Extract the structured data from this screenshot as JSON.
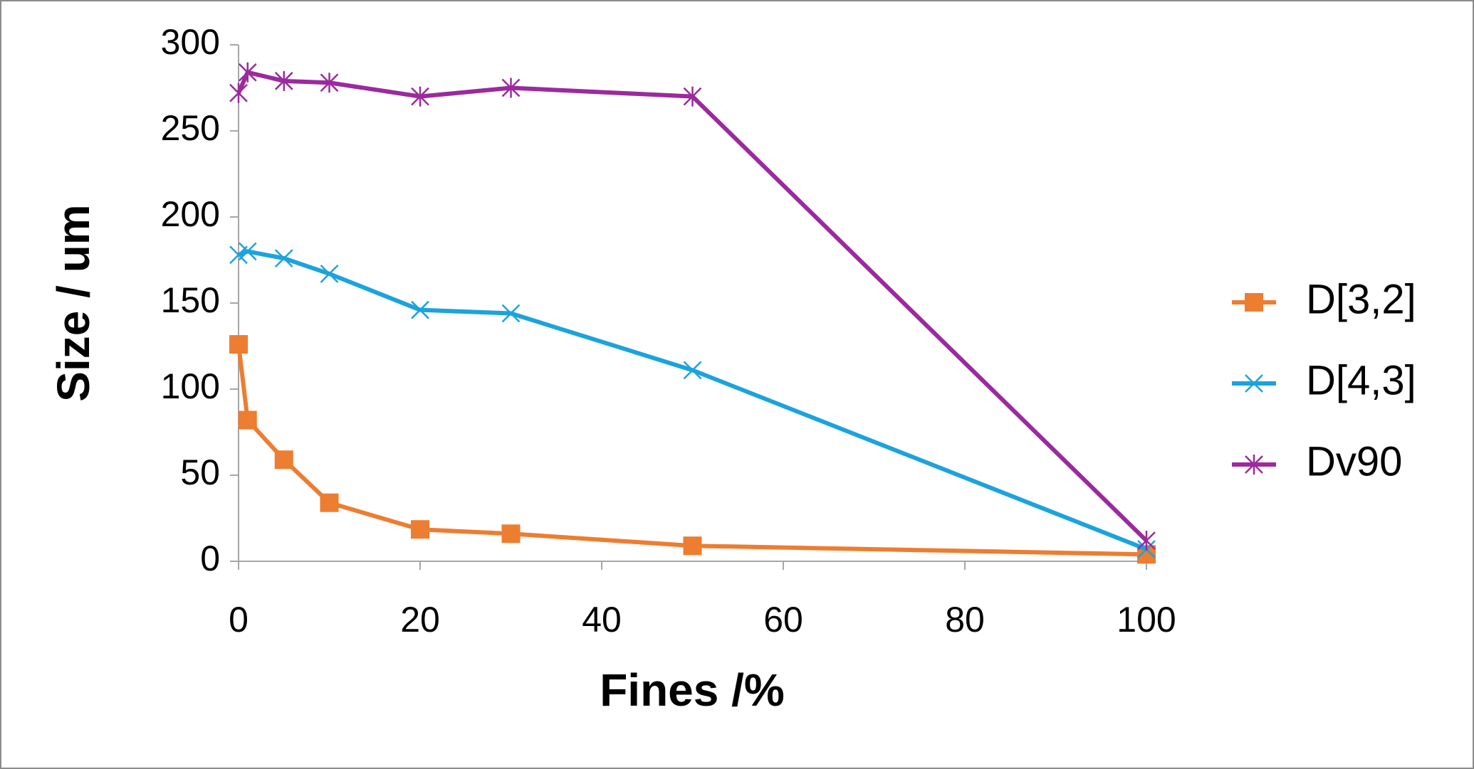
{
  "chart_data": {
    "type": "line",
    "x_label": "Fines /%",
    "y_label": "Size / um",
    "x": [
      0,
      1,
      5,
      10,
      20,
      30,
      50,
      100
    ],
    "series": [
      {
        "name": "D[3,2]",
        "color": "#ED7D31",
        "marker": "square",
        "values": [
          126,
          82,
          59,
          34,
          18.5,
          16,
          9,
          4
        ]
      },
      {
        "name": "D[4,3]",
        "color": "#1CA3DC",
        "marker": "x",
        "values": [
          178,
          180,
          176,
          167,
          146,
          144,
          111,
          7
        ]
      },
      {
        "name": "Dv90",
        "color": "#9B2A9E",
        "marker": "star",
        "values": [
          272,
          284,
          279,
          278,
          270,
          275,
          270,
          12
        ]
      }
    ],
    "xlim": [
      0,
      100
    ],
    "xticks": [
      0,
      20,
      40,
      60,
      80,
      100
    ],
    "ylim": [
      0,
      300
    ],
    "yticks": [
      0,
      50,
      100,
      150,
      200,
      250,
      300
    ],
    "legend": "right"
  }
}
